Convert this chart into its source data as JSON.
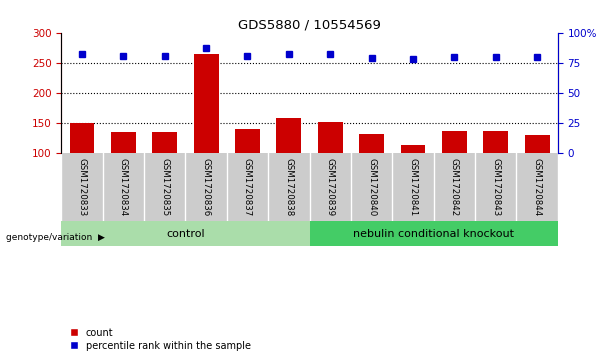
{
  "title": "GDS5880 / 10554569",
  "samples": [
    "GSM1720833",
    "GSM1720834",
    "GSM1720835",
    "GSM1720836",
    "GSM1720837",
    "GSM1720838",
    "GSM1720839",
    "GSM1720840",
    "GSM1720841",
    "GSM1720842",
    "GSM1720843",
    "GSM1720844"
  ],
  "counts": [
    149,
    135,
    134,
    265,
    139,
    158,
    152,
    131,
    113,
    137,
    136,
    129
  ],
  "percentiles": [
    82,
    81,
    81,
    87,
    81,
    82,
    82,
    79,
    78,
    80,
    80,
    80
  ],
  "bar_color": "#cc0000",
  "dot_color": "#0000cc",
  "count_ylim": [
    100,
    300
  ],
  "count_yticks": [
    100,
    150,
    200,
    250,
    300
  ],
  "pct_ylim": [
    0,
    100
  ],
  "pct_yticks": [
    0,
    25,
    50,
    75,
    100
  ],
  "pct_yticklabels": [
    "0",
    "25",
    "50",
    "75",
    "100%"
  ],
  "groups": [
    {
      "label": "control",
      "indices": [
        0,
        1,
        2,
        3,
        4,
        5
      ],
      "color": "#aaddaa"
    },
    {
      "label": "nebulin conditional knockout",
      "indices": [
        6,
        7,
        8,
        9,
        10,
        11
      ],
      "color": "#44cc66"
    }
  ],
  "genotype_label": "genotype/variation",
  "legend_count": "count",
  "legend_pct": "percentile rank within the sample",
  "tick_label_color": "#cc0000",
  "right_axis_color": "#0000cc",
  "grid_color": "black",
  "label_bg_color": "#cccccc",
  "plot_bg": "white"
}
